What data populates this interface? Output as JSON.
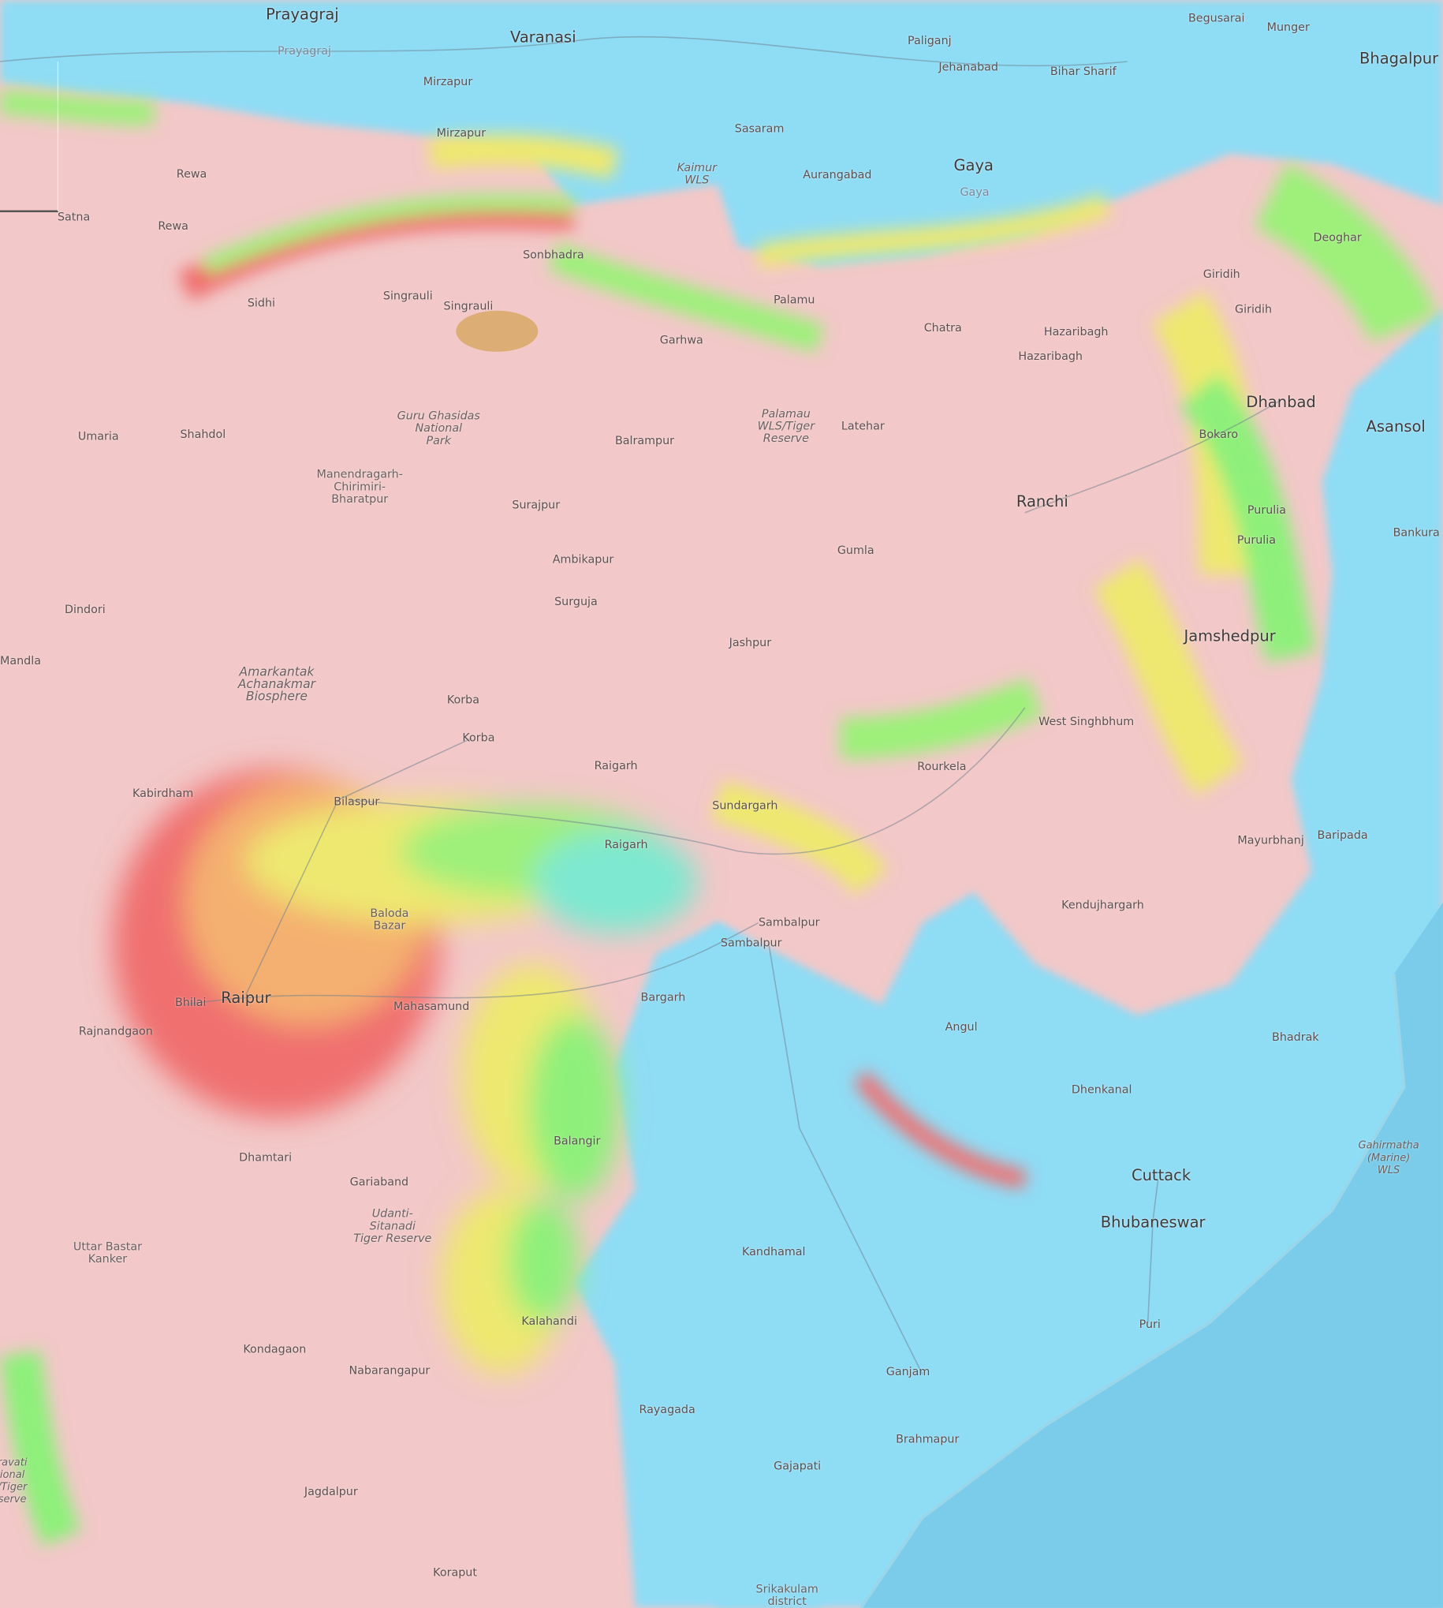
{
  "map": {
    "layer": "elevation-overlay",
    "colors": {
      "lowland": "#8fdcf5",
      "sea": "#7accea",
      "highland": "#f2c8c8",
      "band_red": "#f06a6a",
      "band_yellow": "#f2ea6a",
      "band_green": "#7ef07a",
      "band_cyan": "#6fe8d6",
      "mine": "#d9aa6a"
    },
    "labels": {
      "prayagraj": "Prayagraj",
      "varanasi": "Varanasi",
      "begusarai": "Begusarai",
      "munger": "Munger",
      "bhagalpur": "Bhagalpur",
      "paliganj": "Paliganj",
      "jehanabad": "Jehanabad",
      "bihar_sharif": "Bihar Sharif",
      "prayagraj_district": "Prayagraj",
      "mirzapur": "Mirzapur",
      "sasaram": "Sasaram",
      "mirzapur_district": "Mirzapur",
      "kaimur_wls": "Kaimur\nWLS",
      "aurangabad": "Aurangabad",
      "gaya": "Gaya",
      "gaya_district": "Gaya",
      "rewa_district": "Rewa",
      "satna": "Satna",
      "rewa": "Rewa",
      "deoghar": "Deoghar",
      "sonbhadra": "Sonbhadra",
      "singrauli_district": "Singrauli",
      "sidhi": "Sidhi",
      "singrauli": "Singrauli",
      "palamu": "Palamu",
      "giridih_district": "Giridih",
      "giridih": "Giridih",
      "garhwa": "Garhwa",
      "chatra": "Chatra",
      "hazaribagh_district": "Hazaribagh",
      "hazaribagh": "Hazaribagh",
      "dhanbad": "Dhanbad",
      "asansol": "Asansol",
      "bokaro": "Bokaro",
      "umaria": "Umaria",
      "shahdol": "Shahdol",
      "guru_ghasidas": "Guru Ghasidas\nNational\nPark",
      "balrampur": "Balrampur",
      "palamau_wls": "Palamau\nWLS/Tiger\nReserve",
      "latehar": "Latehar",
      "ranchi": "Ranchi",
      "purulia": "Purulia",
      "purulia_district": "Purulia",
      "bankura": "Bankura",
      "manendragarh": "Manendragarh-\nChirimiri-\nBharatpur",
      "surajpur": "Surajpur",
      "ambikapur": "Ambikapur",
      "gumla": "Gumla",
      "dindori": "Dindori",
      "surguja": "Surguja",
      "jashpur": "Jashpur",
      "jamshedpur": "Jamshedpur",
      "mandla": "Mandla",
      "amarkantak": "Amarkantak\nAchanakmar\nBiosphere",
      "korba_district": "Korba",
      "korba": "Korba",
      "west_singhbhum": "West Singhbhum",
      "raigarh_district": "Raigarh",
      "rourkela": "Rourkela",
      "kabirdham": "Kabirdham",
      "bilaspur": "Bilaspur",
      "sundargarh": "Sundargarh",
      "raigarh": "Raigarh",
      "mayurbhanj": "Mayurbhanj",
      "baripada": "Baripada",
      "baloda_bazar": "Baloda\nBazar",
      "kendujhargarh": "Kendujhargarh",
      "sambalpur_district": "Sambalpur",
      "sambalpur": "Sambalpur",
      "bhilai": "Bhilai",
      "raipur": "Raipur",
      "rajnandgaon": "Rajnandgaon",
      "mahasamund": "Mahasamund",
      "bargarh": "Bargarh",
      "angul": "Angul",
      "bhadrak": "Bhadrak",
      "dhenkanal": "Dhenkanal",
      "balangir": "Balangir",
      "dhamtari": "Dhamtari",
      "gariaband": "Gariaband",
      "udanti": "Udanti-\nSitanadi\nTiger Reserve",
      "gahirmatha": "Gahirmatha\n(Marine)\nWLS",
      "cuttack": "Cuttack",
      "bhubaneswar": "Bhubaneswar",
      "uttar_bastar": "Uttar Bastar\nKanker",
      "kandhamal": "Kandhamal",
      "kalahandi": "Kalahandi",
      "puri": "Puri",
      "kondagaon": "Kondagaon",
      "nabarangapur": "Nabarangapur",
      "ganjam": "Ganjam",
      "rayagada": "Rayagada",
      "brahmapur": "Brahmapur",
      "gajapati": "Gajapati",
      "jagdalpur": "Jagdalpur",
      "koraput": "Koraput",
      "srikakulam": "Srikakulam\ndistrict",
      "indravati": "ravati\nional\n/Tiger\nserve"
    }
  }
}
